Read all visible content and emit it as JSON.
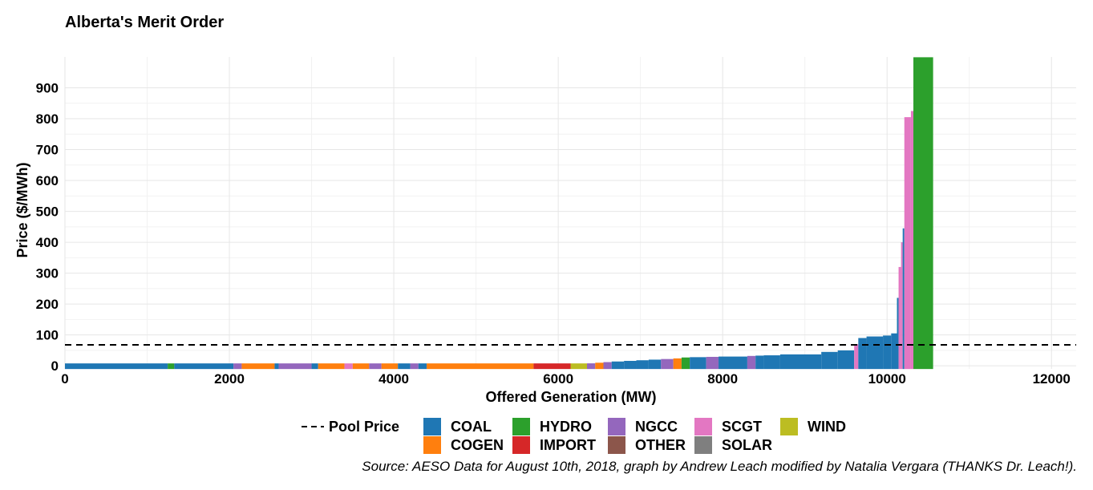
{
  "chart_data": {
    "type": "bar",
    "title": "Alberta's Merit Order",
    "xlabel": "Offered Generation (MW)",
    "ylabel": "Price ($/MWh)",
    "xlim": [
      0,
      12300
    ],
    "ylim": [
      -10,
      1000
    ],
    "x_ticks": [
      0,
      2000,
      4000,
      6000,
      8000,
      10000,
      12000
    ],
    "y_ticks": [
      0,
      100,
      200,
      300,
      400,
      500,
      600,
      700,
      800,
      900
    ],
    "grid": true,
    "legend_position": "bottom",
    "pool_price": 68,
    "pool_price_label": "Pool Price",
    "colors": {
      "COAL": "#1F77B4",
      "COGEN": "#FF7F0E",
      "HYDRO": "#2CA02C",
      "IMPORT": "#D62728",
      "NGCC": "#9467BD",
      "OTHER": "#8C564B",
      "SCGT": "#E377C2",
      "SOLAR": "#7F7F7F",
      "WIND": "#BCBD22"
    },
    "legend": [
      "COAL",
      "COGEN",
      "HYDRO",
      "IMPORT",
      "NGCC",
      "OTHER",
      "SCGT",
      "SOLAR",
      "WIND"
    ],
    "blocks": [
      {
        "x0": 0,
        "x1": 1250,
        "price": 0,
        "type": "COAL"
      },
      {
        "x0": 1250,
        "x1": 1330,
        "price": 0,
        "type": "HYDRO"
      },
      {
        "x0": 1330,
        "x1": 2050,
        "price": 0,
        "type": "COAL"
      },
      {
        "x0": 2050,
        "x1": 2150,
        "price": 0,
        "type": "NGCC"
      },
      {
        "x0": 2150,
        "x1": 2550,
        "price": 0,
        "type": "COGEN"
      },
      {
        "x0": 2550,
        "x1": 2600,
        "price": 0,
        "type": "COAL"
      },
      {
        "x0": 2600,
        "x1": 3000,
        "price": 0,
        "type": "NGCC"
      },
      {
        "x0": 3000,
        "x1": 3080,
        "price": 0,
        "type": "COAL"
      },
      {
        "x0": 3080,
        "x1": 3400,
        "price": 0,
        "type": "COGEN"
      },
      {
        "x0": 3400,
        "x1": 3500,
        "price": 0,
        "type": "SCGT"
      },
      {
        "x0": 3500,
        "x1": 3700,
        "price": 0,
        "type": "COGEN"
      },
      {
        "x0": 3700,
        "x1": 3850,
        "price": 0,
        "type": "NGCC"
      },
      {
        "x0": 3850,
        "x1": 4050,
        "price": 0,
        "type": "COGEN"
      },
      {
        "x0": 4050,
        "x1": 4200,
        "price": 0,
        "type": "COAL"
      },
      {
        "x0": 4200,
        "x1": 4300,
        "price": 0,
        "type": "NGCC"
      },
      {
        "x0": 4300,
        "x1": 4400,
        "price": 0,
        "type": "COAL"
      },
      {
        "x0": 4400,
        "x1": 5700,
        "price": 0,
        "type": "COGEN"
      },
      {
        "x0": 5700,
        "x1": 6150,
        "price": 0,
        "type": "IMPORT"
      },
      {
        "x0": 6150,
        "x1": 6350,
        "price": 0,
        "type": "WIND"
      },
      {
        "x0": 6350,
        "x1": 6450,
        "price": 8,
        "type": "NGCC"
      },
      {
        "x0": 6450,
        "x1": 6550,
        "price": 10,
        "type": "COGEN"
      },
      {
        "x0": 6550,
        "x1": 6650,
        "price": 12,
        "type": "NGCC"
      },
      {
        "x0": 6650,
        "x1": 6800,
        "price": 14,
        "type": "COAL"
      },
      {
        "x0": 6800,
        "x1": 6950,
        "price": 16,
        "type": "COAL"
      },
      {
        "x0": 6950,
        "x1": 7100,
        "price": 18,
        "type": "COAL"
      },
      {
        "x0": 7100,
        "x1": 7250,
        "price": 20,
        "type": "COAL"
      },
      {
        "x0": 7250,
        "x1": 7400,
        "price": 22,
        "type": "NGCC"
      },
      {
        "x0": 7400,
        "x1": 7500,
        "price": 24,
        "type": "COGEN"
      },
      {
        "x0": 7500,
        "x1": 7600,
        "price": 27,
        "type": "HYDRO"
      },
      {
        "x0": 7600,
        "x1": 7800,
        "price": 28,
        "type": "COAL"
      },
      {
        "x0": 7800,
        "x1": 7950,
        "price": 29,
        "type": "NGCC"
      },
      {
        "x0": 7950,
        "x1": 8300,
        "price": 30,
        "type": "COAL"
      },
      {
        "x0": 8300,
        "x1": 8400,
        "price": 32,
        "type": "NGCC"
      },
      {
        "x0": 8400,
        "x1": 8500,
        "price": 33,
        "type": "COAL"
      },
      {
        "x0": 8500,
        "x1": 8700,
        "price": 34,
        "type": "COAL"
      },
      {
        "x0": 8700,
        "x1": 9200,
        "price": 37,
        "type": "COAL"
      },
      {
        "x0": 9200,
        "x1": 9400,
        "price": 45,
        "type": "COAL"
      },
      {
        "x0": 9400,
        "x1": 9600,
        "price": 50,
        "type": "COAL"
      },
      {
        "x0": 9600,
        "x1": 9650,
        "price": 70,
        "type": "SCGT"
      },
      {
        "x0": 9650,
        "x1": 9750,
        "price": 90,
        "type": "COAL"
      },
      {
        "x0": 9750,
        "x1": 9950,
        "price": 95,
        "type": "COAL"
      },
      {
        "x0": 9950,
        "x1": 10050,
        "price": 98,
        "type": "COAL"
      },
      {
        "x0": 10050,
        "x1": 10120,
        "price": 105,
        "type": "COAL"
      },
      {
        "x0": 10120,
        "x1": 10140,
        "price": 220,
        "type": "COAL"
      },
      {
        "x0": 10140,
        "x1": 10170,
        "price": 320,
        "type": "SCGT"
      },
      {
        "x0": 10170,
        "x1": 10190,
        "price": 400,
        "type": "SCGT"
      },
      {
        "x0": 10190,
        "x1": 10210,
        "price": 445,
        "type": "COAL"
      },
      {
        "x0": 10210,
        "x1": 10290,
        "price": 805,
        "type": "SCGT"
      },
      {
        "x0": 10290,
        "x1": 10320,
        "price": 825,
        "type": "SCGT"
      },
      {
        "x0": 10320,
        "x1": 10560,
        "price": 999,
        "type": "HYDRO"
      }
    ]
  },
  "source_caption": "Source: AESO Data for August 10th, 2018, graph by Andrew Leach modified by Natalia Vergara (THANKS Dr. Leach!)."
}
